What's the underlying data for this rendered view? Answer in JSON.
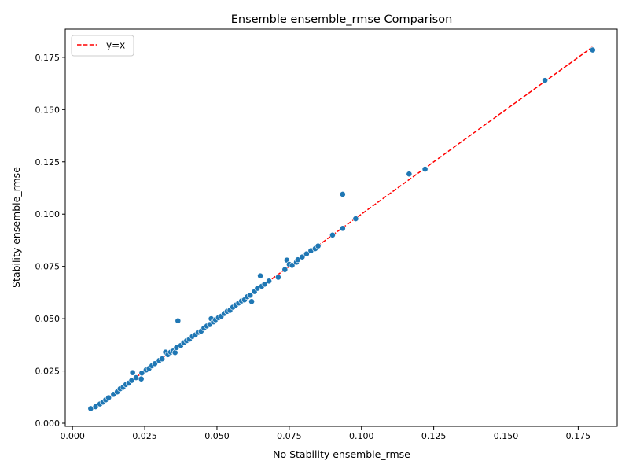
{
  "chart_data": {
    "type": "scatter",
    "title": "Ensemble ensemble_rmse Comparison",
    "xlabel": "No Stability ensemble_rmse",
    "ylabel": "Stability ensemble_rmse",
    "xlim": [
      -0.0025,
      0.1885
    ],
    "ylim": [
      -0.0015,
      0.1885
    ],
    "xticks": [
      "0.000",
      "0.025",
      "0.050",
      "0.075",
      "0.100",
      "0.125",
      "0.150",
      "0.175"
    ],
    "yticks": [
      "0.000",
      "0.025",
      "0.050",
      "0.075",
      "0.100",
      "0.125",
      "0.150",
      "0.175"
    ],
    "grid": false,
    "legend_position": "upper-left",
    "reference_line": {
      "label": "y=x",
      "color": "#ff0000",
      "style": "dashed",
      "from": 0.0063,
      "to": 0.18
    },
    "series": [
      {
        "color": "#1f77b4",
        "points": [
          [
            0.0063,
            0.007
          ],
          [
            0.008,
            0.0079
          ],
          [
            0.0095,
            0.0092
          ],
          [
            0.0105,
            0.0101
          ],
          [
            0.0115,
            0.0112
          ],
          [
            0.0125,
            0.0122
          ],
          [
            0.0142,
            0.0138
          ],
          [
            0.0155,
            0.015
          ],
          [
            0.0165,
            0.0165
          ],
          [
            0.0175,
            0.0172
          ],
          [
            0.0185,
            0.0185
          ],
          [
            0.0195,
            0.0192
          ],
          [
            0.0205,
            0.0205
          ],
          [
            0.0208,
            0.0242
          ],
          [
            0.022,
            0.0218
          ],
          [
            0.0238,
            0.0212
          ],
          [
            0.024,
            0.024
          ],
          [
            0.0255,
            0.0255
          ],
          [
            0.0265,
            0.0262
          ],
          [
            0.0275,
            0.0275
          ],
          [
            0.0285,
            0.0285
          ],
          [
            0.03,
            0.03
          ],
          [
            0.031,
            0.0308
          ],
          [
            0.0322,
            0.034
          ],
          [
            0.033,
            0.0328
          ],
          [
            0.034,
            0.034
          ],
          [
            0.0348,
            0.0345
          ],
          [
            0.0355,
            0.0338
          ],
          [
            0.036,
            0.0362
          ],
          [
            0.0365,
            0.049
          ],
          [
            0.0375,
            0.0372
          ],
          [
            0.0385,
            0.0385
          ],
          [
            0.0395,
            0.0395
          ],
          [
            0.0405,
            0.0402
          ],
          [
            0.0415,
            0.0415
          ],
          [
            0.0425,
            0.0422
          ],
          [
            0.0435,
            0.0435
          ],
          [
            0.0445,
            0.044
          ],
          [
            0.0455,
            0.0455
          ],
          [
            0.0465,
            0.0465
          ],
          [
            0.0475,
            0.0472
          ],
          [
            0.048,
            0.05
          ],
          [
            0.0488,
            0.0485
          ],
          [
            0.0495,
            0.0495
          ],
          [
            0.0505,
            0.0505
          ],
          [
            0.0515,
            0.0512
          ],
          [
            0.0525,
            0.0525
          ],
          [
            0.0535,
            0.0535
          ],
          [
            0.0545,
            0.054
          ],
          [
            0.0555,
            0.0555
          ],
          [
            0.0565,
            0.0565
          ],
          [
            0.0575,
            0.0575
          ],
          [
            0.0585,
            0.0585
          ],
          [
            0.0595,
            0.059
          ],
          [
            0.0605,
            0.0605
          ],
          [
            0.0615,
            0.0612
          ],
          [
            0.062,
            0.0582
          ],
          [
            0.063,
            0.063
          ],
          [
            0.064,
            0.0645
          ],
          [
            0.065,
            0.0705
          ],
          [
            0.0655,
            0.0655
          ],
          [
            0.0665,
            0.0665
          ],
          [
            0.068,
            0.068
          ],
          [
            0.0712,
            0.0698
          ],
          [
            0.0735,
            0.0735
          ],
          [
            0.0742,
            0.078
          ],
          [
            0.075,
            0.076
          ],
          [
            0.076,
            0.0755
          ],
          [
            0.0775,
            0.077
          ],
          [
            0.078,
            0.0782
          ],
          [
            0.0795,
            0.0795
          ],
          [
            0.081,
            0.081
          ],
          [
            0.0825,
            0.0825
          ],
          [
            0.084,
            0.0835
          ],
          [
            0.085,
            0.0848
          ],
          [
            0.09,
            0.09
          ],
          [
            0.0935,
            0.1095
          ],
          [
            0.0935,
            0.0932
          ],
          [
            0.098,
            0.0978
          ],
          [
            0.1165,
            0.1192
          ],
          [
            0.122,
            0.1215
          ],
          [
            0.1635,
            0.164
          ],
          [
            0.18,
            0.1785
          ]
        ]
      }
    ]
  }
}
